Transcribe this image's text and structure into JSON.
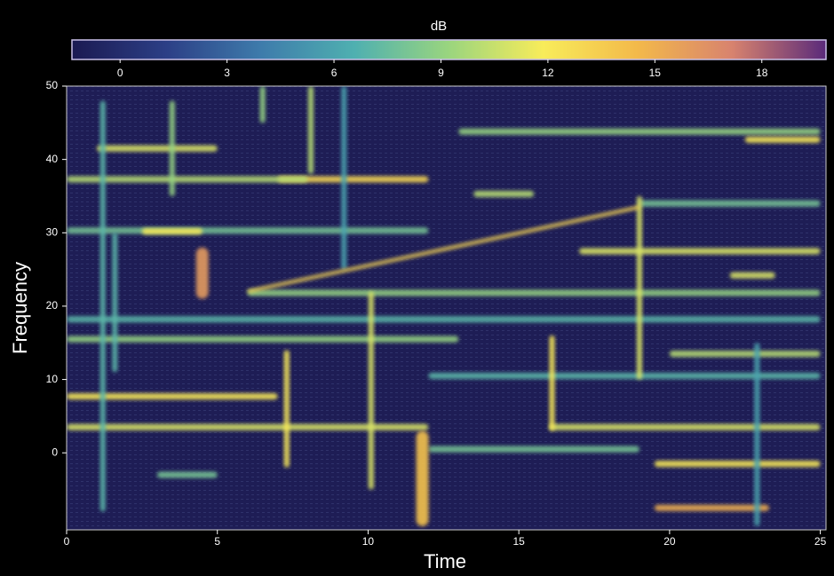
{
  "chart_data": {
    "type": "spectrogram",
    "colorbar_title": "dB",
    "clim": [
      -1.35,
      19.8
    ],
    "cticks": [
      0,
      3,
      6,
      9,
      12,
      15,
      18
    ],
    "colormap": [
      "#1b1a52",
      "#2c3f86",
      "#3e7bab",
      "#4fb0b0",
      "#9ad57e",
      "#f8ec5a",
      "#f3b94a",
      "#d8836e",
      "#5a2a7a"
    ],
    "xlabel": "Time",
    "ylabel": "Frequency",
    "xlim": [
      0,
      25.1
    ],
    "ylim": [
      -10.5,
      50
    ],
    "xticks": [
      0,
      5,
      10,
      15,
      20,
      25
    ],
    "yticks": [
      0,
      10,
      20,
      30,
      40,
      50
    ],
    "tones": [
      {
        "t0": 0,
        "t1": 12,
        "f": 30.3,
        "level": 8
      },
      {
        "t0": 2.5,
        "t1": 4.5,
        "f": 30.2,
        "level": 12
      },
      {
        "t0": 0,
        "t1": 25,
        "f": 18.2,
        "level": 7
      },
      {
        "t0": 0,
        "t1": 13,
        "f": 15.5,
        "level": 9
      },
      {
        "t0": 0,
        "t1": 7,
        "f": 7.7,
        "level": 12
      },
      {
        "t0": 0,
        "t1": 12,
        "f": 3.5,
        "level": 11
      },
      {
        "t0": 16,
        "t1": 25,
        "f": 3.5,
        "level": 11
      },
      {
        "t0": 12,
        "t1": 19,
        "f": 0.5,
        "level": 8
      },
      {
        "t0": 19.5,
        "t1": 25,
        "f": -1.5,
        "level": 12
      },
      {
        "t0": 7,
        "t1": 12,
        "f": 37.3,
        "level": 13
      },
      {
        "t0": 0,
        "t1": 8,
        "f": 37.3,
        "level": 10
      },
      {
        "t0": 13,
        "t1": 25,
        "f": 43.8,
        "level": 9
      },
      {
        "t0": 13.5,
        "t1": 15.5,
        "f": 35.3,
        "level": 10
      },
      {
        "t0": 19,
        "t1": 25,
        "f": 34,
        "level": 8
      },
      {
        "t0": 17,
        "t1": 25,
        "f": 27.5,
        "level": 11
      },
      {
        "t0": 20,
        "t1": 25,
        "f": 13.5,
        "level": 10
      },
      {
        "t0": 22,
        "t1": 23.5,
        "f": 24.2,
        "level": 11
      },
      {
        "t0": 1,
        "t1": 5,
        "f": 41.5,
        "level": 11
      },
      {
        "t0": 6,
        "t1": 25,
        "f": 21.8,
        "level": 9
      },
      {
        "t0": 3,
        "t1": 5,
        "f": -3,
        "level": 8
      },
      {
        "t0": 22.5,
        "t1": 25,
        "f": 42.7,
        "level": 12
      },
      {
        "t0": 12,
        "t1": 25,
        "f": 10.5,
        "level": 7
      },
      {
        "t0": 19.5,
        "t1": 23.3,
        "f": -7.5,
        "level": 15
      }
    ],
    "clicks": [
      {
        "t": 1.2,
        "f0": -8,
        "f1": 48,
        "level": 7
      },
      {
        "t": 3.5,
        "f0": 35,
        "f1": 48,
        "level": 9
      },
      {
        "t": 8.1,
        "f0": 38,
        "f1": 50,
        "level": 10
      },
      {
        "t": 9.2,
        "f0": 25,
        "f1": 50,
        "level": 6
      },
      {
        "t": 7.3,
        "f0": -2,
        "f1": 14,
        "level": 12
      },
      {
        "t": 10.1,
        "f0": -5,
        "f1": 22,
        "level": 11
      },
      {
        "t": 11.8,
        "f0": -10,
        "f1": 3,
        "level": 14
      },
      {
        "t": 16.1,
        "f0": 3,
        "f1": 16,
        "level": 12
      },
      {
        "t": 19,
        "f0": 10,
        "f1": 35,
        "level": 11
      },
      {
        "t": 4.5,
        "f0": 21,
        "f1": 28,
        "level": 16
      },
      {
        "t": 6.5,
        "f0": 45,
        "f1": 50,
        "level": 9
      },
      {
        "t": 1.6,
        "f0": 11,
        "f1": 30,
        "level": 7
      },
      {
        "t": 22.9,
        "f0": -10,
        "f1": 15,
        "level": 6
      }
    ],
    "chirps": [
      {
        "t0": 6,
        "f0": 22,
        "t1": 19,
        "f1": 33.5,
        "level": 13
      }
    ]
  }
}
